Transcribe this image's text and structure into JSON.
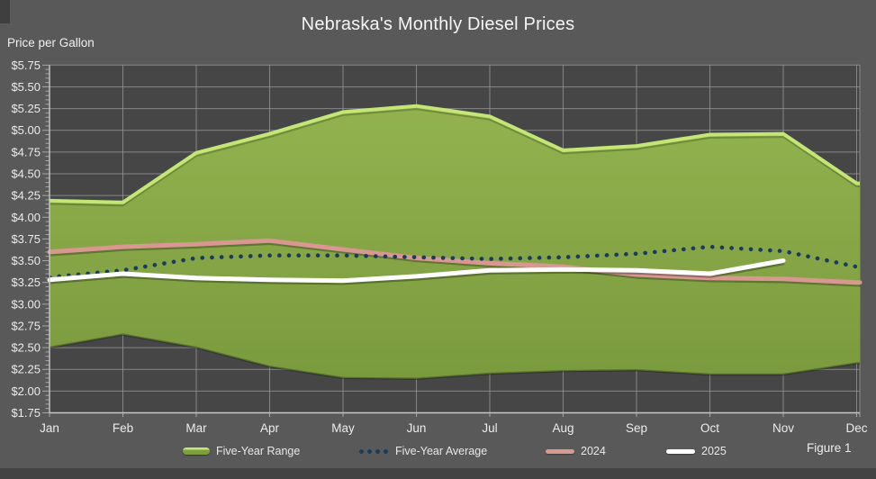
{
  "title": "Nebraska's Monthly Diesel Prices",
  "y_axis_label": "Price per Gallon",
  "figure_label": "Figure 1",
  "legend": {
    "items": [
      {
        "label": "Five-Year Range",
        "type": "band"
      },
      {
        "label": "Five-Year Average",
        "type": "dots"
      },
      {
        "label": "2024",
        "type": "line"
      },
      {
        "label": "2025",
        "type": "line"
      }
    ]
  },
  "colors": {
    "outer_bg": "#595959",
    "plot_bg": "#464646",
    "grid": "#9b9b9b",
    "axis": "#c8c8c8",
    "band_fill_top": "#93b24f",
    "band_fill_bottom": "#7a9a3e",
    "band_edge": "#c3e676",
    "avg_dots": "#1a3a5e",
    "line_2024": "#d99792",
    "line_2025": "#ffffff",
    "text": "#ececec"
  },
  "chart_data": {
    "type": "area",
    "title": "Nebraska's Monthly Diesel Prices",
    "ylabel": "Price per Gallon",
    "ylim": [
      1.75,
      5.75
    ],
    "y_tick_step": 0.25,
    "y_tick_labels": [
      "$5.75",
      "$5.50",
      "$5.25",
      "$5.00",
      "$4.75",
      "$4.50",
      "$4.25",
      "$4.00",
      "$3.75",
      "$3.50",
      "$3.25",
      "$3.00",
      "$2.75",
      "$2.50",
      "$2.25",
      "$2.00",
      "$1.75"
    ],
    "categories": [
      "Jan",
      "Feb",
      "Mar",
      "Apr",
      "May",
      "Jun",
      "Jul",
      "Aug",
      "Sep",
      "Oct",
      "Nov",
      "Dec"
    ],
    "grid": true,
    "legend_position": "bottom",
    "series": [
      {
        "name": "Five-Year Range",
        "type": "band",
        "top": [
          4.19,
          4.17,
          4.74,
          4.96,
          5.21,
          5.28,
          5.16,
          4.77,
          4.82,
          4.95,
          4.96,
          4.39
        ],
        "bottom": [
          2.5,
          2.65,
          2.5,
          2.28,
          2.15,
          2.14,
          2.2,
          2.23,
          2.24,
          2.19,
          2.19,
          2.32
        ]
      },
      {
        "name": "Five-Year Average",
        "type": "dotted-line",
        "values": [
          3.31,
          3.39,
          3.53,
          3.56,
          3.56,
          3.54,
          3.52,
          3.54,
          3.58,
          3.66,
          3.61,
          3.43
        ]
      },
      {
        "name": "2024",
        "type": "line",
        "values": [
          3.6,
          3.66,
          3.69,
          3.73,
          3.63,
          3.53,
          3.47,
          3.43,
          3.34,
          3.3,
          3.29,
          3.25
        ]
      },
      {
        "name": "2025",
        "type": "line",
        "values": [
          3.28,
          3.35,
          3.3,
          3.28,
          3.27,
          3.32,
          3.39,
          3.4,
          3.39,
          3.35,
          3.5,
          null
        ]
      }
    ]
  }
}
